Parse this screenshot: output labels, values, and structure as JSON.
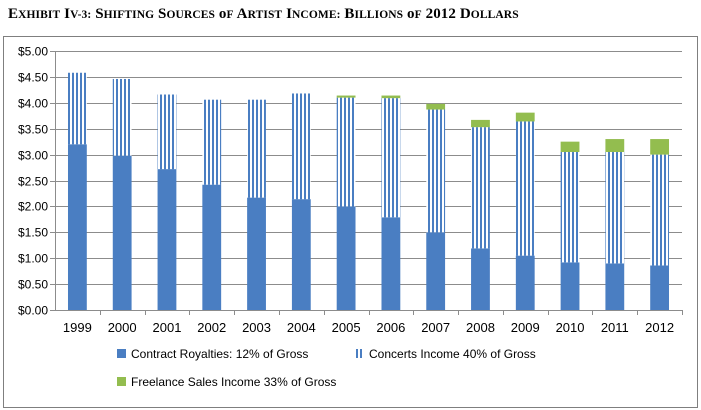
{
  "title_lead": "E",
  "title_rest": "XHIBIT IV-3: S",
  "title_full": "Exhibit IV-3: Shifting Sources of Artist Income: Billions of 2012 Dollars",
  "chart_data": {
    "type": "bar",
    "stacked": true,
    "title": "Exhibit IV-3: Shifting Sources of Artist Income: Billions of 2012 Dollars",
    "xlabel": "",
    "ylabel": "",
    "categories": [
      "1999",
      "2000",
      "2001",
      "2002",
      "2003",
      "2004",
      "2005",
      "2006",
      "2007",
      "2008",
      "2009",
      "2010",
      "2011",
      "2012"
    ],
    "ylim": [
      0,
      5
    ],
    "yticks": [
      "$0.00",
      "$0.50",
      "$1.00",
      "$1.50",
      "$2.00",
      "$2.50",
      "$3.00",
      "$3.50",
      "$4.00",
      "$4.50",
      "$5.00"
    ],
    "grid": true,
    "legend_position": "bottom",
    "series": [
      {
        "name": "Contract Royalties: 12% of Gross",
        "color": "#4a7ec2",
        "pattern": "solid",
        "values": [
          3.2,
          2.98,
          2.72,
          2.42,
          2.17,
          2.14,
          2.0,
          1.79,
          1.5,
          1.19,
          1.05,
          0.92,
          0.9,
          0.86
        ]
      },
      {
        "name": "Concerts Income 40% of Gross",
        "color": "#4a7ec2",
        "pattern": "vertical-stripes",
        "values": [
          1.38,
          1.48,
          1.44,
          1.64,
          1.89,
          2.04,
          2.1,
          2.3,
          2.37,
          2.34,
          2.59,
          2.13,
          2.15,
          2.14
        ]
      },
      {
        "name": "Freelance Sales Income 33% of Gross",
        "color": "#93bd4f",
        "pattern": "solid",
        "values": [
          0.0,
          0.0,
          0.0,
          0.0,
          0.0,
          0.0,
          0.04,
          0.05,
          0.11,
          0.14,
          0.17,
          0.2,
          0.25,
          0.3
        ]
      }
    ]
  }
}
